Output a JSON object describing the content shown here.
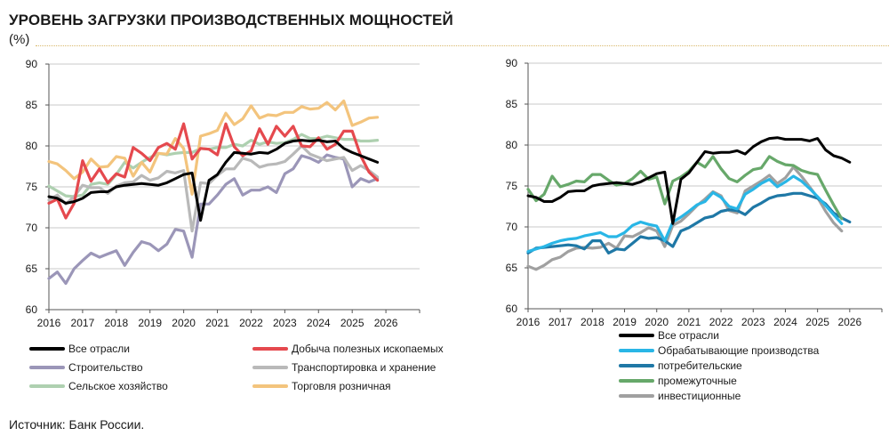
{
  "header": {
    "title": "УРОВЕНЬ ЗАГРУЗКИ ПРОИЗВОДСТВЕННЫХ МОЩНОСТЕЙ",
    "subtitle": "(%)"
  },
  "source": "Источник: Банк России.",
  "chart_data": [
    {
      "type": "line",
      "title": "",
      "xlabel": "",
      "ylabel": "%",
      "ylim": [
        60,
        90
      ],
      "yticks": [
        "60",
        "65",
        "70",
        "75",
        "80",
        "85",
        "90"
      ],
      "xlim": [
        2016,
        2027
      ],
      "xticks": [
        "2016",
        "2017",
        "2018",
        "2019",
        "2020",
        "2021",
        "2022",
        "2023",
        "2024",
        "2025",
        "2026"
      ],
      "grid": true,
      "legend": "bottom",
      "x_start": 2016.0,
      "x_step": 0.25,
      "series": [
        {
          "name": "Все отрасли",
          "color": "#000000",
          "values": [
            73.8,
            73.6,
            73.0,
            73.2,
            73.6,
            74.3,
            74.4,
            74.4,
            75.0,
            75.2,
            75.3,
            75.4,
            75.3,
            75.2,
            75.5,
            76.0,
            76.5,
            76.7,
            70.9,
            75.8,
            76.5,
            78.0,
            79.2,
            79.1,
            79.0,
            79.2,
            79.1,
            79.6,
            80.3,
            80.6,
            80.7,
            80.6,
            80.7,
            80.5,
            80.6,
            79.7,
            79.2,
            78.8,
            78.4,
            78.0
          ]
        },
        {
          "name": "Добыча полезных ископаемых",
          "color": "#e5494e",
          "values": [
            73.0,
            73.5,
            71.2,
            73.0,
            78.2,
            75.7,
            77.2,
            75.5,
            76.6,
            76.2,
            79.8,
            79.1,
            78.2,
            79.8,
            80.3,
            79.6,
            82.7,
            78.4,
            79.7,
            79.6,
            78.9,
            82.7,
            79.9,
            78.8,
            79.4,
            82.1,
            80.2,
            82.4,
            81.2,
            82.4,
            80.0,
            79.9,
            81.0,
            79.6,
            80.2,
            81.8,
            81.8,
            78.8,
            76.8,
            75.8
          ]
        },
        {
          "name": "Строительство",
          "color": "#9b96b8",
          "values": [
            63.8,
            64.6,
            63.2,
            65.0,
            66.0,
            66.9,
            66.4,
            66.8,
            67.2,
            65.4,
            67.0,
            68.3,
            68.0,
            67.2,
            68.0,
            69.8,
            69.6,
            66.4,
            72.9,
            72.9,
            74.0,
            75.3,
            76.0,
            74.0,
            74.6,
            74.6,
            75.0,
            74.3,
            76.6,
            77.2,
            78.8,
            78.5,
            78.0,
            78.9,
            78.6,
            78.4,
            75.0,
            76.0,
            75.6,
            76.0
          ]
        },
        {
          "name": "Транспортировка и хранение",
          "color": "#b9b9b9",
          "values": [
            73.4,
            74.0,
            72.9,
            73.8,
            75.2,
            74.9,
            74.9,
            74.2,
            75.1,
            75.5,
            75.6,
            76.4,
            75.8,
            76.1,
            76.9,
            76.7,
            77.0,
            69.6,
            75.5,
            75.4,
            76.4,
            77.2,
            77.2,
            78.5,
            78.2,
            77.4,
            77.7,
            77.8,
            78.1,
            79.0,
            80.0,
            79.0,
            78.6,
            78.2,
            78.4,
            78.6,
            77.0,
            77.6,
            77.0,
            76.2
          ]
        },
        {
          "name": "Сельское хозяйство",
          "color": "#aed0b0",
          "values": [
            75.1,
            74.5,
            73.9,
            73.8,
            74.0,
            75.3,
            75.5,
            75.3,
            76.5,
            78.0,
            77.3,
            78.0,
            78.6,
            79.1,
            78.9,
            79.1,
            79.2,
            79.2,
            79.7,
            79.6,
            79.8,
            79.8,
            80.2,
            80.0,
            80.7,
            80.2,
            80.5,
            80.3,
            80.4,
            80.8,
            81.4,
            80.9,
            80.9,
            81.2,
            81.0,
            80.8,
            80.8,
            80.6,
            80.6,
            80.7
          ]
        },
        {
          "name": "Торговля розничная",
          "color": "#f3c47d",
          "values": [
            78.1,
            77.8,
            77.0,
            76.0,
            76.8,
            78.4,
            77.4,
            77.5,
            78.7,
            78.5,
            76.3,
            78.0,
            76.8,
            79.1,
            79.0,
            80.9,
            79.7,
            74.1,
            81.2,
            81.5,
            81.9,
            84.0,
            82.6,
            83.3,
            84.9,
            83.4,
            83.8,
            83.7,
            84.1,
            84.1,
            84.8,
            84.5,
            84.6,
            85.3,
            84.4,
            85.5,
            82.5,
            82.9,
            83.4,
            83.5
          ]
        }
      ]
    },
    {
      "type": "line",
      "title": "",
      "xlabel": "",
      "ylabel": "%",
      "ylim": [
        60,
        90
      ],
      "yticks": [
        "60",
        "65",
        "70",
        "75",
        "80",
        "85",
        "90"
      ],
      "xlim": [
        2016,
        2027
      ],
      "xticks": [
        "2016",
        "2017",
        "2018",
        "2019",
        "2020",
        "2021",
        "2022",
        "2023",
        "2024",
        "2025",
        "2026"
      ],
      "grid": true,
      "legend": "bottom",
      "x_start": 2016.0,
      "x_step": 0.25,
      "series": [
        {
          "name": "Все отрасли",
          "color": "#000000",
          "values": [
            73.8,
            73.6,
            73.1,
            73.1,
            73.6,
            74.3,
            74.4,
            74.4,
            75.0,
            75.2,
            75.3,
            75.4,
            75.3,
            75.2,
            75.5,
            76.0,
            76.5,
            76.7,
            70.4,
            75.8,
            76.6,
            77.9,
            79.2,
            79.0,
            79.1,
            79.1,
            79.3,
            78.9,
            79.8,
            80.4,
            80.8,
            80.9,
            80.7,
            80.7,
            80.7,
            80.5,
            80.8,
            79.4,
            78.7,
            78.4,
            77.9
          ]
        },
        {
          "name": "Обрабатывающие производства",
          "color": "#29b6e6",
          "values": [
            67.0,
            67.3,
            67.6,
            68.0,
            68.3,
            68.5,
            68.6,
            68.9,
            69.1,
            69.3,
            68.8,
            68.8,
            69.3,
            70.2,
            70.6,
            70.3,
            70.1,
            68.3,
            70.6,
            71.2,
            71.9,
            72.7,
            73.1,
            74.2,
            73.6,
            72.5,
            72.2,
            74.0,
            74.6,
            75.3,
            75.8,
            74.9,
            75.5,
            76.2,
            75.6,
            74.7,
            73.7,
            72.6,
            71.5,
            70.4
          ]
        },
        {
          "name": "потребительские",
          "color": "#1f78a6",
          "values": [
            66.8,
            67.4,
            67.5,
            67.6,
            67.7,
            67.8,
            67.7,
            67.3,
            68.3,
            68.3,
            66.8,
            67.3,
            67.2,
            68.0,
            68.8,
            68.6,
            68.7,
            68.3,
            67.6,
            69.5,
            69.9,
            70.5,
            71.1,
            71.3,
            71.9,
            72.1,
            72.0,
            71.5,
            72.4,
            72.9,
            73.5,
            73.8,
            73.9,
            74.1,
            74.1,
            73.8,
            73.5,
            72.8,
            71.7,
            71.1,
            70.6
          ]
        },
        {
          "name": "промежуточные",
          "color": "#67a86a",
          "values": [
            74.6,
            73.2,
            74.0,
            76.2,
            74.9,
            75.2,
            75.6,
            75.5,
            76.4,
            76.4,
            75.7,
            75.1,
            75.3,
            75.9,
            76.8,
            75.8,
            76.1,
            72.8,
            75.6,
            76.1,
            76.8,
            77.9,
            77.3,
            78.6,
            77.1,
            75.9,
            75.5,
            76.3,
            77.0,
            77.2,
            78.6,
            78.0,
            77.6,
            77.5,
            76.9,
            76.6,
            76.4,
            74.5,
            72.7,
            71.0
          ]
        },
        {
          "name": "инвестиционные",
          "color": "#a0a0a0",
          "values": [
            65.2,
            64.8,
            65.3,
            66.0,
            66.3,
            67.0,
            67.4,
            67.5,
            67.4,
            67.5,
            68.0,
            67.4,
            68.9,
            68.8,
            69.3,
            69.9,
            69.5,
            67.6,
            70.2,
            70.7,
            71.6,
            72.6,
            73.4,
            74.3,
            73.8,
            72.0,
            71.7,
            74.4,
            75.0,
            75.6,
            76.3,
            75.3,
            76.0,
            77.3,
            76.2,
            74.9,
            73.6,
            71.9,
            70.5,
            69.5
          ]
        }
      ]
    }
  ]
}
